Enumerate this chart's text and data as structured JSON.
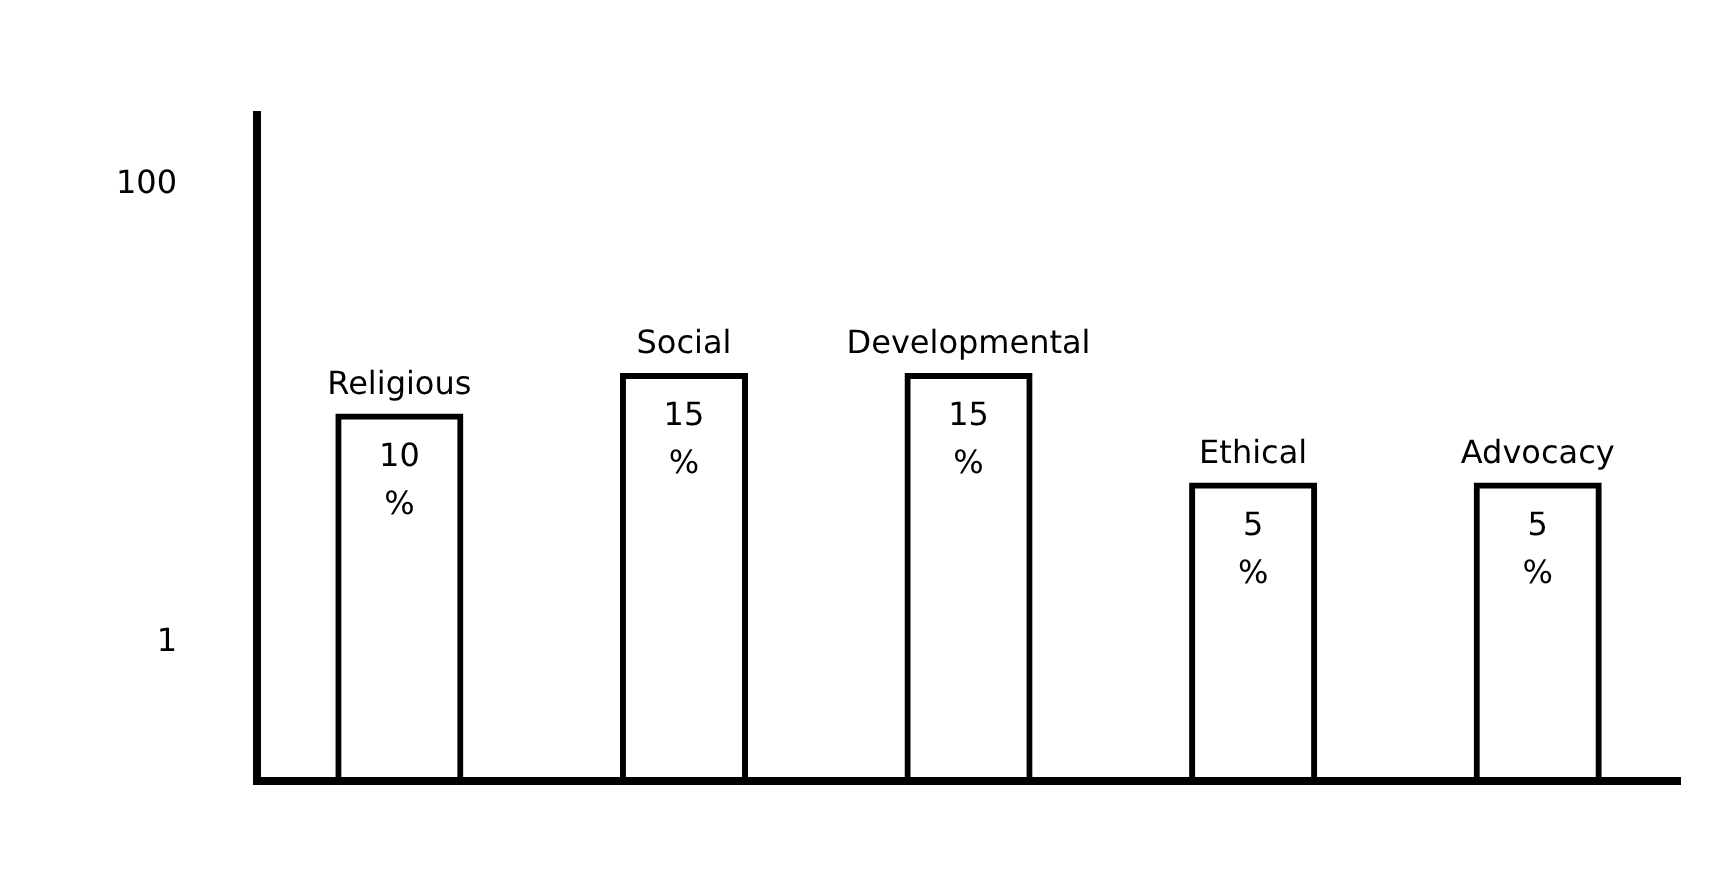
{
  "chart_data": {
    "type": "bar",
    "categories": [
      "Religious",
      "Social",
      "Developmental",
      "Ethical",
      "Advocacy"
    ],
    "values": [
      10,
      15,
      15,
      5,
      5
    ],
    "value_labels": [
      "10 %",
      "15 %",
      "15 %",
      "5 %",
      "5 %"
    ],
    "color": "#000000",
    "log": "y",
    "ylim": [
      0.25,
      200
    ],
    "yticks": [
      1,
      100
    ],
    "grid": false,
    "legend": false
  }
}
